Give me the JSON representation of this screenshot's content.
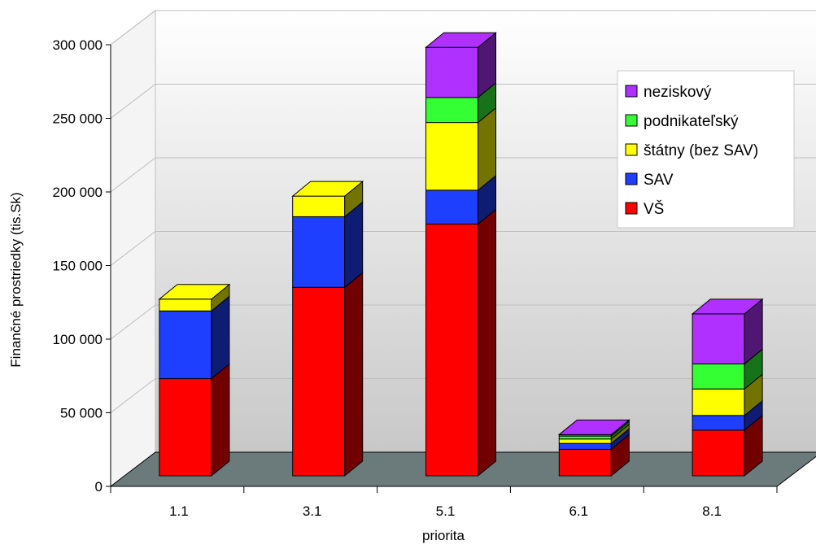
{
  "chart_data": {
    "type": "bar",
    "stacked": true,
    "three_d": true,
    "xlabel": "priorita",
    "ylabel": "Finančné prostriedky (tis.Sk)",
    "categories": [
      "1.1",
      "3.1",
      "5.1",
      "6.1",
      "8.1"
    ],
    "ylim": [
      0,
      300000
    ],
    "yticks": [
      0,
      50000,
      100000,
      150000,
      200000,
      250000,
      300000
    ],
    "ytick_labels": [
      "0",
      "50 000",
      "100 000",
      "150 000",
      "200 000",
      "250 000",
      "300 000"
    ],
    "grid": true,
    "legend_position": "top-right",
    "series": [
      {
        "name": "VŠ",
        "color": "#ff0000",
        "values": [
          66000,
          128000,
          171000,
          18000,
          31000
        ]
      },
      {
        "name": "SAV",
        "color": "#1f3fff",
        "values": [
          46000,
          48000,
          23000,
          4000,
          10000
        ]
      },
      {
        "name": "štátny (bez SAV)",
        "color": "#ffff00",
        "values": [
          8000,
          14000,
          46000,
          3000,
          18000
        ]
      },
      {
        "name": "podnikateľský",
        "color": "#33ff33",
        "values": [
          0,
          0,
          17000,
          2000,
          17000
        ]
      },
      {
        "name": "neziskový",
        "color": "#b030ff",
        "values": [
          0,
          0,
          34000,
          1000,
          34000
        ]
      }
    ]
  }
}
